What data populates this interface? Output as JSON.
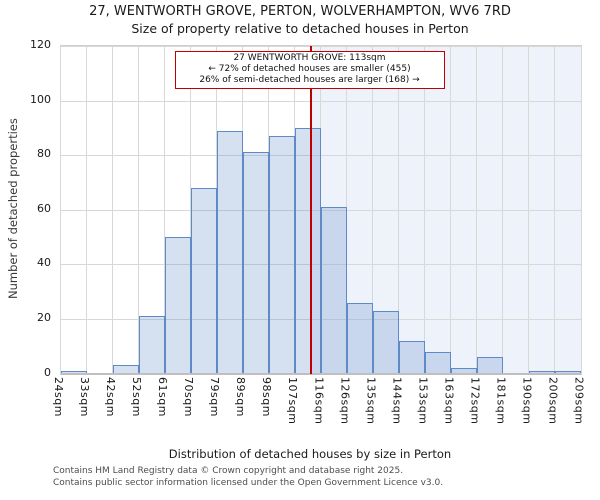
{
  "header": {
    "title": "27, WENTWORTH GROVE, PERTON, WOLVERHAMPTON, WV6 7RD",
    "subtitle": "Size of property relative to detached houses in Perton"
  },
  "annotation": {
    "line1": "27 WENTWORTH GROVE: 113sqm",
    "line2": "← 72% of detached houses are smaller (455)",
    "line3": "26% of semi-detached houses are larger (168) →"
  },
  "chart_data": {
    "type": "bar",
    "title": "27, WENTWORTH GROVE, PERTON, WOLVERHAMPTON, WV6 7RD",
    "subtitle": "Size of property relative to detached houses in Perton",
    "xlabel": "Distribution of detached houses by size in Perton",
    "ylabel": "Number of detached properties",
    "ylim": [
      0,
      120
    ],
    "yticks": [
      0,
      20,
      40,
      60,
      80,
      100,
      120
    ],
    "grid": true,
    "x_range_sqm": [
      24,
      209
    ],
    "categories": [
      "24sqm",
      "33sqm",
      "42sqm",
      "52sqm",
      "61sqm",
      "70sqm",
      "79sqm",
      "89sqm",
      "98sqm",
      "107sqm",
      "116sqm",
      "126sqm",
      "135sqm",
      "144sqm",
      "153sqm",
      "163sqm",
      "172sqm",
      "181sqm",
      "190sqm",
      "200sqm",
      "209sqm"
    ],
    "bin_start_sqm": [
      24,
      33,
      42,
      52,
      61,
      70,
      79,
      89,
      98,
      107,
      116,
      126,
      135,
      144,
      153,
      163,
      172,
      181,
      190,
      200
    ],
    "values": [
      1,
      0,
      3,
      21,
      50,
      68,
      89,
      81,
      87,
      90,
      61,
      26,
      23,
      12,
      8,
      2,
      6,
      0,
      1,
      1
    ],
    "marker": {
      "sqm": 113,
      "label": "27 WENTWORTH GROVE: 113sqm"
    }
  },
  "footer": {
    "line1": "Contains HM Land Registry data © Crown copyright and database right 2025.",
    "line2": "Contains public sector information licensed under the Open Government Licence v3.0."
  },
  "colors": {
    "bar_fill": "rgba(91,135,197,0.26)",
    "bar_edge": "#5e8bc7",
    "marker_red": "#c00000",
    "shade_right_of_marker": "#eef3fb",
    "gridline": "#d8d8d8",
    "axis": "#bfbfbf",
    "footer_text": "#4d4d4d"
  }
}
